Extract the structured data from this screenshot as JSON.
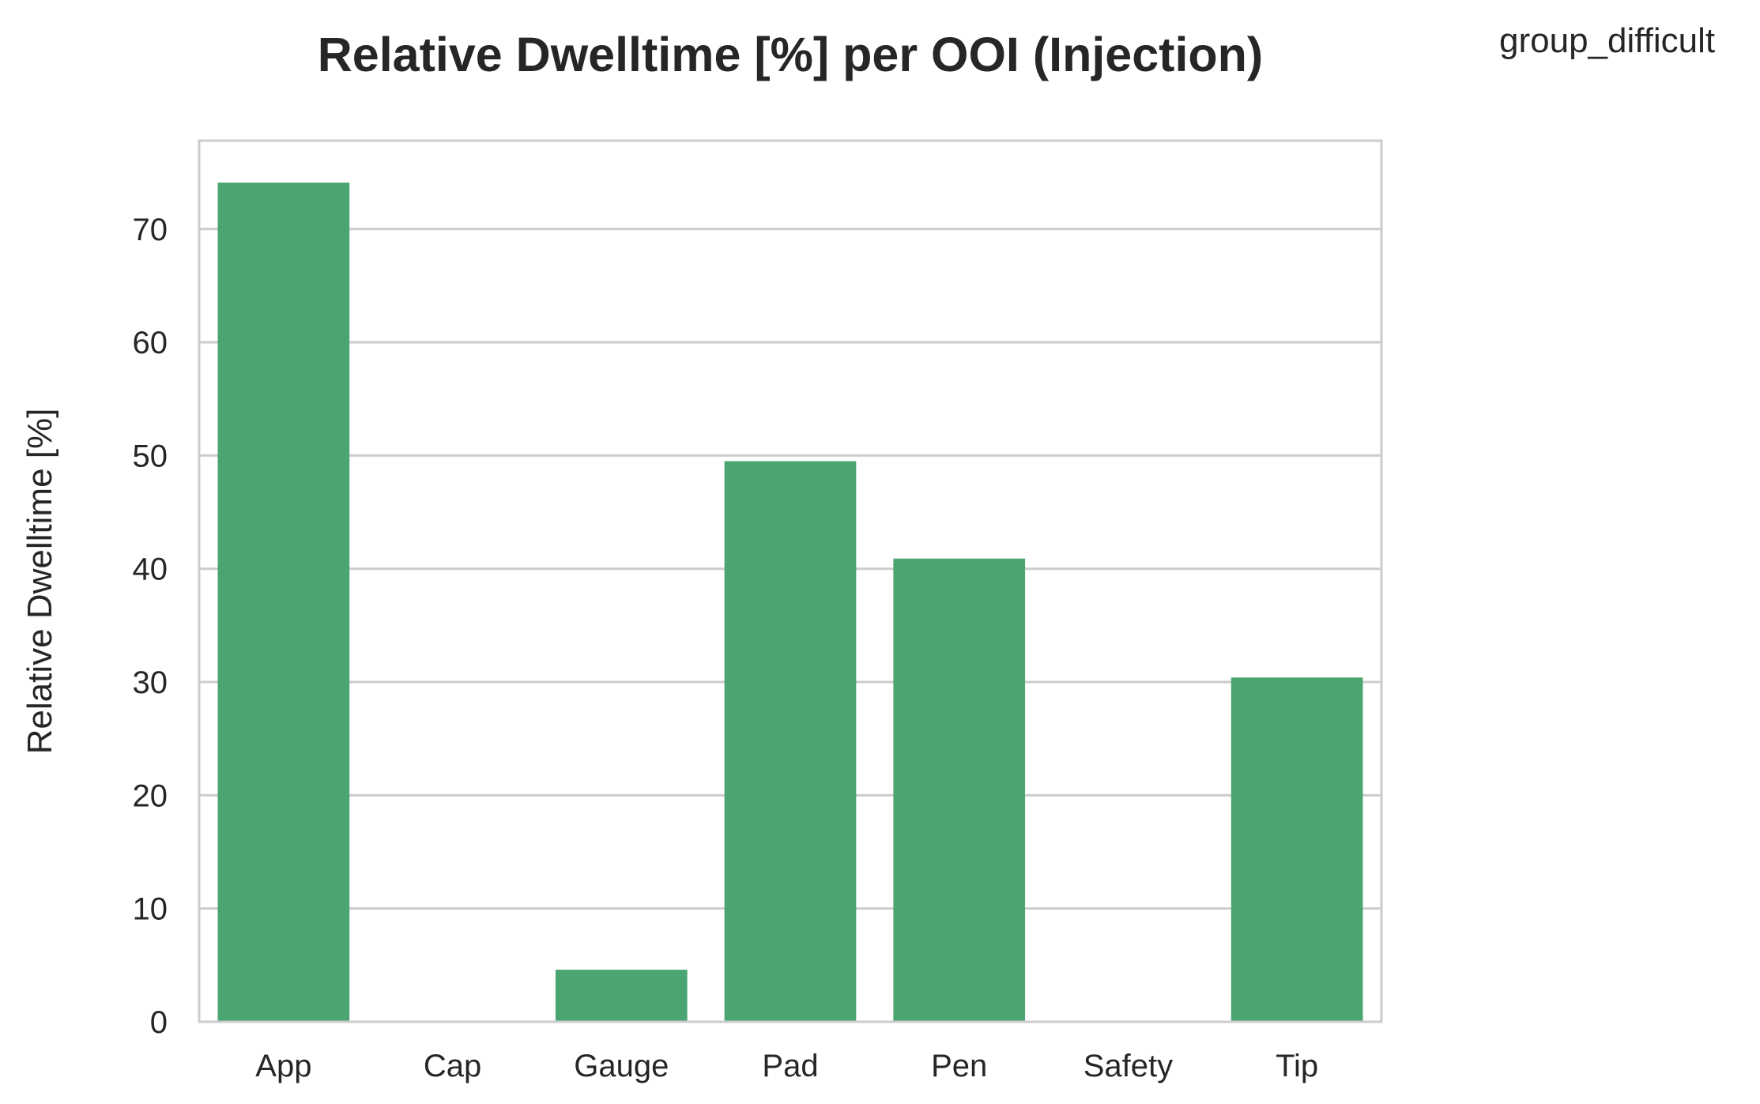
{
  "chart_data": {
    "type": "bar",
    "title": "Relative Dwelltime [%] per OOI (Injection)",
    "xlabel": "",
    "ylabel": "Relative Dwelltime [%]",
    "legend_title": "group_difficult",
    "categories": [
      "App",
      "Cap",
      "Gauge",
      "Pad",
      "Pen",
      "Safety",
      "Tip"
    ],
    "values": [
      74.1,
      0,
      4.6,
      49.5,
      40.9,
      0,
      30.4
    ],
    "ylim": [
      0,
      77.8
    ],
    "yticks": [
      0,
      10,
      20,
      30,
      40,
      50,
      60,
      70
    ],
    "grid": "y",
    "bar_color": "#4ba573",
    "grid_color": "#cccccc",
    "spine_color": "#cccccc"
  }
}
